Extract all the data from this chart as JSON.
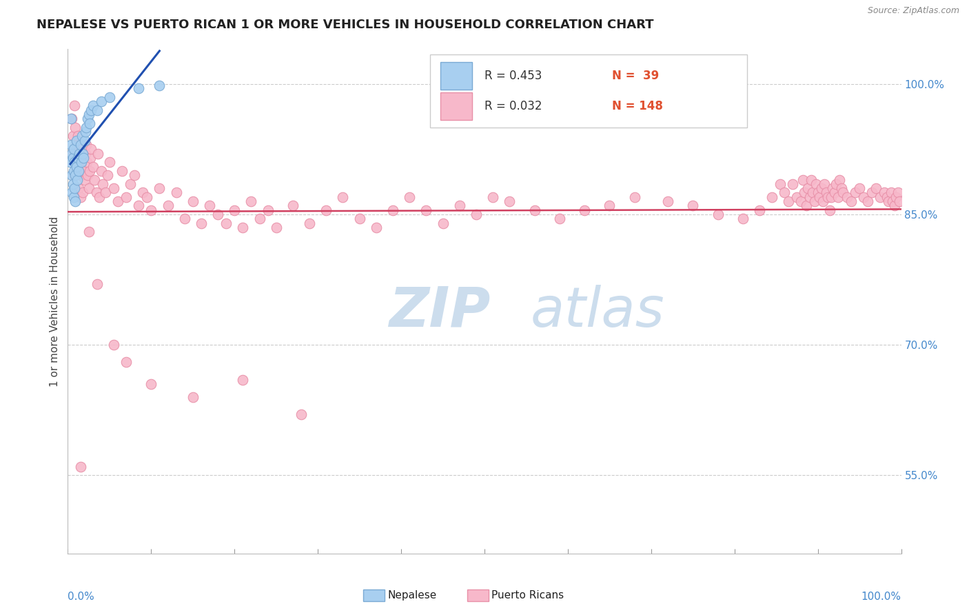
{
  "title": "NEPALESE VS PUERTO RICAN 1 OR MORE VEHICLES IN HOUSEHOLD CORRELATION CHART",
  "source": "Source: ZipAtlas.com",
  "ylabel": "1 or more Vehicles in Household",
  "xlim": [
    0.0,
    1.0
  ],
  "ylim": [
    0.46,
    1.04
  ],
  "x_ticks": [
    0.0,
    0.1,
    0.2,
    0.3,
    0.4,
    0.5,
    0.6,
    0.7,
    0.8,
    0.9,
    1.0
  ],
  "y_tick_right_values": [
    0.55,
    0.7,
    0.85,
    1.0
  ],
  "legend_R_nepalese": "0.453",
  "legend_N_nepalese": "39",
  "legend_R_puerto": "0.032",
  "legend_N_puerto": "148",
  "nepalese_color": "#a8cff0",
  "puerto_rican_color": "#f7b8ca",
  "nepalese_edge_color": "#7aaad4",
  "puerto_rican_edge_color": "#e890a8",
  "trend_nepalese_color": "#2050b0",
  "trend_puerto_color": "#d04060",
  "watermark_color": "#ccdded",
  "background_color": "#ffffff",
  "nepalese_x": [
    0.003,
    0.004,
    0.004,
    0.005,
    0.005,
    0.005,
    0.006,
    0.006,
    0.007,
    0.007,
    0.007,
    0.008,
    0.008,
    0.009,
    0.009,
    0.01,
    0.01,
    0.011,
    0.012,
    0.013,
    0.014,
    0.015,
    0.016,
    0.017,
    0.018,
    0.019,
    0.02,
    0.021,
    0.022,
    0.024,
    0.025,
    0.026,
    0.028,
    0.03,
    0.035,
    0.04,
    0.05,
    0.085,
    0.11
  ],
  "nepalese_y": [
    0.91,
    0.93,
    0.96,
    0.875,
    0.895,
    0.92,
    0.885,
    0.915,
    0.87,
    0.9,
    0.925,
    0.88,
    0.91,
    0.865,
    0.895,
    0.905,
    0.935,
    0.89,
    0.915,
    0.9,
    0.92,
    0.93,
    0.91,
    0.94,
    0.92,
    0.915,
    0.935,
    0.945,
    0.95,
    0.96,
    0.965,
    0.955,
    0.97,
    0.975,
    0.97,
    0.98,
    0.985,
    0.995,
    0.998
  ],
  "puerto_rican_x": [
    0.005,
    0.006,
    0.007,
    0.008,
    0.008,
    0.009,
    0.01,
    0.01,
    0.011,
    0.012,
    0.013,
    0.013,
    0.014,
    0.015,
    0.015,
    0.016,
    0.017,
    0.018,
    0.018,
    0.019,
    0.02,
    0.021,
    0.022,
    0.023,
    0.024,
    0.025,
    0.026,
    0.027,
    0.028,
    0.03,
    0.032,
    0.034,
    0.036,
    0.038,
    0.04,
    0.042,
    0.045,
    0.048,
    0.05,
    0.055,
    0.06,
    0.065,
    0.07,
    0.075,
    0.08,
    0.085,
    0.09,
    0.095,
    0.1,
    0.11,
    0.12,
    0.13,
    0.14,
    0.15,
    0.16,
    0.17,
    0.18,
    0.19,
    0.2,
    0.21,
    0.22,
    0.23,
    0.24,
    0.25,
    0.27,
    0.29,
    0.31,
    0.33,
    0.35,
    0.37,
    0.39,
    0.41,
    0.43,
    0.45,
    0.47,
    0.49,
    0.51,
    0.53,
    0.56,
    0.59,
    0.62,
    0.65,
    0.68,
    0.72,
    0.75,
    0.78,
    0.81,
    0.83,
    0.845,
    0.855,
    0.86,
    0.865,
    0.87,
    0.875,
    0.88,
    0.882,
    0.884,
    0.886,
    0.888,
    0.89,
    0.892,
    0.894,
    0.896,
    0.898,
    0.9,
    0.902,
    0.904,
    0.906,
    0.908,
    0.91,
    0.912,
    0.914,
    0.916,
    0.918,
    0.92,
    0.922,
    0.924,
    0.926,
    0.928,
    0.93,
    0.935,
    0.94,
    0.945,
    0.95,
    0.955,
    0.96,
    0.965,
    0.97,
    0.975,
    0.98,
    0.983,
    0.985,
    0.988,
    0.99,
    0.992,
    0.994,
    0.996,
    0.998,
    0.015,
    0.025,
    0.035,
    0.055,
    0.07,
    0.1,
    0.15,
    0.21,
    0.28
  ],
  "puerto_rican_y": [
    0.96,
    0.94,
    0.92,
    0.975,
    0.895,
    0.95,
    0.93,
    0.9,
    0.915,
    0.94,
    0.88,
    0.91,
    0.925,
    0.87,
    0.895,
    0.905,
    0.92,
    0.875,
    0.9,
    0.915,
    0.89,
    0.92,
    0.93,
    0.91,
    0.895,
    0.88,
    0.9,
    0.915,
    0.925,
    0.905,
    0.89,
    0.875,
    0.92,
    0.87,
    0.9,
    0.885,
    0.875,
    0.895,
    0.91,
    0.88,
    0.865,
    0.9,
    0.87,
    0.885,
    0.895,
    0.86,
    0.875,
    0.87,
    0.855,
    0.88,
    0.86,
    0.875,
    0.845,
    0.865,
    0.84,
    0.86,
    0.85,
    0.84,
    0.855,
    0.835,
    0.865,
    0.845,
    0.855,
    0.835,
    0.86,
    0.84,
    0.855,
    0.87,
    0.845,
    0.835,
    0.855,
    0.87,
    0.855,
    0.84,
    0.86,
    0.85,
    0.87,
    0.865,
    0.855,
    0.845,
    0.855,
    0.86,
    0.87,
    0.865,
    0.86,
    0.85,
    0.845,
    0.855,
    0.87,
    0.885,
    0.875,
    0.865,
    0.885,
    0.87,
    0.865,
    0.89,
    0.875,
    0.86,
    0.88,
    0.87,
    0.89,
    0.875,
    0.865,
    0.885,
    0.875,
    0.87,
    0.88,
    0.865,
    0.885,
    0.875,
    0.87,
    0.855,
    0.87,
    0.88,
    0.875,
    0.885,
    0.87,
    0.89,
    0.88,
    0.875,
    0.87,
    0.865,
    0.875,
    0.88,
    0.87,
    0.865,
    0.875,
    0.88,
    0.87,
    0.875,
    0.87,
    0.865,
    0.875,
    0.865,
    0.86,
    0.87,
    0.875,
    0.865,
    0.56,
    0.83,
    0.77,
    0.7,
    0.68,
    0.655,
    0.64,
    0.66,
    0.62
  ]
}
